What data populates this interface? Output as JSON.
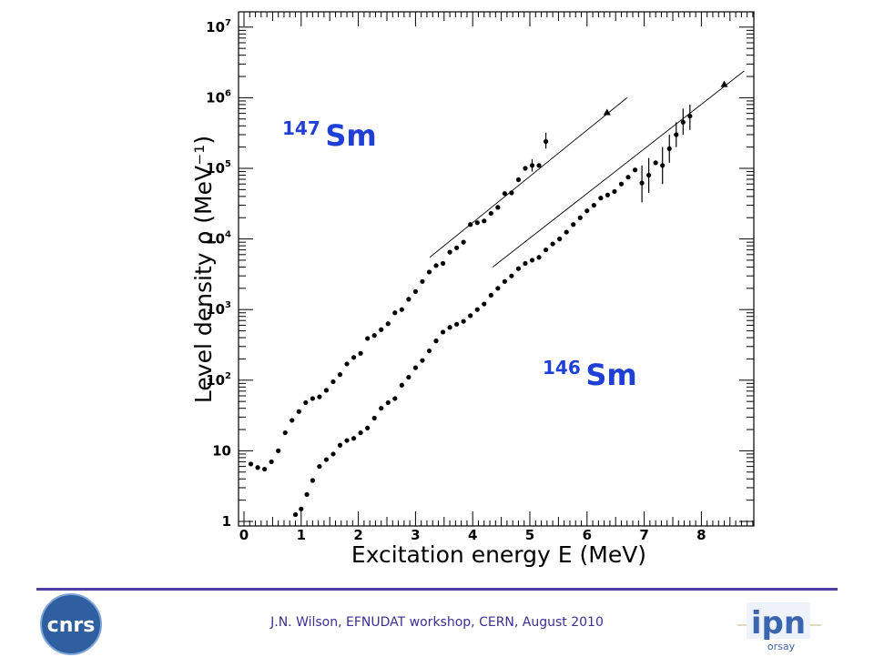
{
  "chart_data": {
    "type": "scatter",
    "xlabel": "Excitation energy E (MeV)",
    "ylabel": "Level density ρ (MeV⁻¹)",
    "xlim": [
      0,
      8.9
    ],
    "ylim": [
      1,
      10000000
    ],
    "yscale": "log",
    "x_ticks": [
      0,
      1,
      2,
      3,
      4,
      5,
      6,
      7,
      8
    ],
    "y_ticks": [
      {
        "value": 1,
        "base": "1",
        "exp": ""
      },
      {
        "value": 10,
        "base": "10",
        "exp": ""
      },
      {
        "value": 100,
        "base": "10",
        "exp": "2"
      },
      {
        "value": 1000,
        "base": "10",
        "exp": "3"
      },
      {
        "value": 10000,
        "base": "10",
        "exp": "4"
      },
      {
        "value": 100000,
        "base": "10",
        "exp": "5"
      },
      {
        "value": 1000000,
        "base": "10",
        "exp": "6"
      },
      {
        "value": 10000000,
        "base": "10",
        "exp": "7"
      }
    ],
    "grid": false,
    "series": [
      {
        "mass": "147",
        "element": "Sm",
        "points": [
          [
            0.12,
            6.5
          ],
          [
            0.24,
            5.8
          ],
          [
            0.36,
            5.5
          ],
          [
            0.48,
            7
          ],
          [
            0.6,
            10
          ],
          [
            0.72,
            18
          ],
          [
            0.84,
            27
          ],
          [
            0.96,
            36
          ],
          [
            1.08,
            48
          ],
          [
            1.2,
            55
          ],
          [
            1.32,
            58
          ],
          [
            1.44,
            72
          ],
          [
            1.56,
            95
          ],
          [
            1.68,
            120
          ],
          [
            1.8,
            170
          ],
          [
            1.92,
            210
          ],
          [
            2.04,
            240
          ],
          [
            2.16,
            390
          ],
          [
            2.28,
            430
          ],
          [
            2.4,
            520
          ],
          [
            2.52,
            630
          ],
          [
            2.64,
            900
          ],
          [
            2.76,
            1000
          ],
          [
            2.88,
            1400
          ],
          [
            3.0,
            1800
          ],
          [
            3.12,
            2500
          ],
          [
            3.24,
            3400
          ],
          [
            3.36,
            4200
          ],
          [
            3.48,
            4500
          ],
          [
            3.6,
            6500
          ],
          [
            3.72,
            7500
          ],
          [
            3.84,
            9000
          ],
          [
            3.96,
            16000
          ],
          [
            4.08,
            17000
          ],
          [
            4.2,
            18000
          ],
          [
            4.32,
            23000
          ],
          [
            4.44,
            28000
          ],
          [
            4.56,
            44000
          ],
          [
            4.68,
            45000
          ],
          [
            4.8,
            69000
          ],
          [
            4.92,
            100000
          ],
          [
            5.04,
            110000
          ],
          [
            5.16,
            110000
          ],
          [
            5.28,
            240000
          ]
        ],
        "error_bars": [
          {
            "x": 5.28,
            "y": 240000,
            "lo": 190000,
            "hi": 320000
          },
          {
            "x": 5.04,
            "y": 110000,
            "lo": 90000,
            "hi": 135000
          }
        ],
        "anchor": [
          6.35,
          620000
        ],
        "fit_line": [
          [
            3.25,
            5500
          ],
          [
            6.7,
            1000000
          ]
        ]
      },
      {
        "mass": "146",
        "element": "Sm",
        "points": [
          [
            0.9,
            1.25
          ],
          [
            1.0,
            1.5
          ],
          [
            1.1,
            2.4
          ],
          [
            1.2,
            3.8
          ],
          [
            1.32,
            6
          ],
          [
            1.44,
            7.5
          ],
          [
            1.56,
            9
          ],
          [
            1.68,
            12
          ],
          [
            1.8,
            14
          ],
          [
            1.92,
            15
          ],
          [
            2.04,
            18
          ],
          [
            2.16,
            21
          ],
          [
            2.28,
            29
          ],
          [
            2.4,
            40
          ],
          [
            2.52,
            48
          ],
          [
            2.64,
            55
          ],
          [
            2.76,
            85
          ],
          [
            2.88,
            110
          ],
          [
            3.0,
            150
          ],
          [
            3.12,
            190
          ],
          [
            3.24,
            260
          ],
          [
            3.36,
            360
          ],
          [
            3.48,
            480
          ],
          [
            3.6,
            560
          ],
          [
            3.72,
            620
          ],
          [
            3.84,
            680
          ],
          [
            3.96,
            820
          ],
          [
            4.08,
            1000
          ],
          [
            4.2,
            1200
          ],
          [
            4.32,
            1600
          ],
          [
            4.44,
            2000
          ],
          [
            4.56,
            2500
          ],
          [
            4.68,
            3000
          ],
          [
            4.8,
            3800
          ],
          [
            4.92,
            4500
          ],
          [
            5.04,
            5000
          ],
          [
            5.16,
            5500
          ],
          [
            5.28,
            7000
          ],
          [
            5.4,
            8500
          ],
          [
            5.52,
            10000
          ],
          [
            5.64,
            12500
          ],
          [
            5.76,
            16000
          ],
          [
            5.88,
            20000
          ],
          [
            6.0,
            25000
          ],
          [
            6.12,
            30000
          ],
          [
            6.24,
            38000
          ],
          [
            6.36,
            42000
          ],
          [
            6.48,
            47000
          ],
          [
            6.6,
            60000
          ],
          [
            6.72,
            75000
          ],
          [
            6.84,
            95000
          ],
          [
            6.96,
            62000
          ],
          [
            7.08,
            80000
          ],
          [
            7.2,
            120000
          ],
          [
            7.32,
            110000
          ],
          [
            7.44,
            190000
          ],
          [
            7.56,
            300000
          ],
          [
            7.68,
            450000
          ],
          [
            7.8,
            550000
          ]
        ],
        "error_bars": [
          {
            "x": 6.96,
            "y": 62000,
            "lo": 33000,
            "hi": 110000
          },
          {
            "x": 7.08,
            "y": 80000,
            "lo": 45000,
            "hi": 140000
          },
          {
            "x": 7.32,
            "y": 110000,
            "lo": 60000,
            "hi": 200000
          },
          {
            "x": 7.44,
            "y": 190000,
            "lo": 120000,
            "hi": 300000
          },
          {
            "x": 7.56,
            "y": 300000,
            "lo": 200000,
            "hi": 450000
          },
          {
            "x": 7.68,
            "y": 450000,
            "lo": 300000,
            "hi": 700000
          },
          {
            "x": 7.8,
            "y": 550000,
            "lo": 350000,
            "hi": 800000
          }
        ],
        "anchor": [
          8.4,
          1550000
        ],
        "fit_line": [
          [
            4.35,
            4000
          ],
          [
            8.75,
            2400000
          ]
        ]
      }
    ]
  },
  "footer": {
    "text": "J.N. Wilson,  EFNUDAT workshop, CERN, August 2010",
    "rule_color": "#4d3fa6",
    "text_color": "#3d2f8f"
  },
  "logos": {
    "left": {
      "text": "cnrs",
      "color": "#2f5fa0"
    },
    "right": {
      "text": "ipn",
      "sub": "orsay",
      "color": "#3b64b0",
      "accent": "#c9b07a"
    }
  }
}
